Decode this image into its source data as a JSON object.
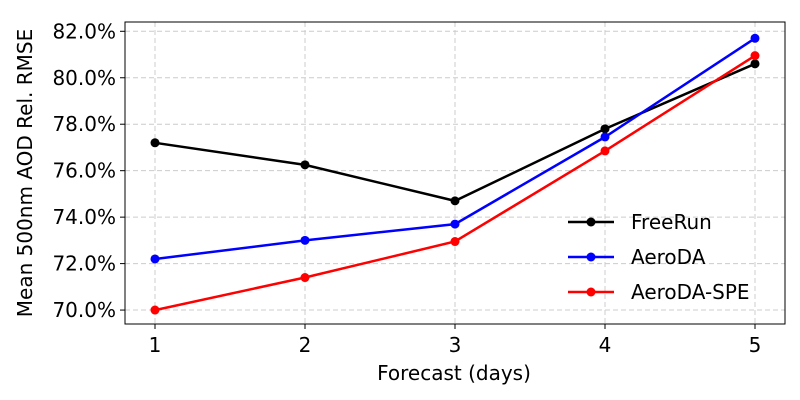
{
  "chart_data": {
    "type": "line",
    "x": [
      1,
      2,
      3,
      4,
      5
    ],
    "xlabel": "Forecast (days)",
    "ylabel": "Mean 500nm AOD Rel. RMSE",
    "xlim": [
      0.8,
      5.2
    ],
    "ylim": [
      69.4,
      82.4
    ],
    "xticks": [
      1,
      2,
      3,
      4,
      5
    ],
    "yticks": [
      70,
      72,
      74,
      76,
      78,
      80,
      82
    ],
    "ytick_labels": [
      "70.0%",
      "72.0%",
      "74.0%",
      "76.0%",
      "78.0%",
      "80.0%",
      "82.0%"
    ],
    "grid": true,
    "legend_position": "lower-right",
    "series": [
      {
        "name": "FreeRun",
        "color": "#000000",
        "values": [
          77.2,
          76.25,
          74.7,
          77.8,
          80.6
        ]
      },
      {
        "name": "AeroDA",
        "color": "#0000ff",
        "values": [
          72.2,
          73.0,
          73.7,
          77.45,
          81.7
        ]
      },
      {
        "name": "AeroDA-SPE",
        "color": "#ff0000",
        "values": [
          70.0,
          71.4,
          72.95,
          76.85,
          80.95
        ]
      }
    ]
  }
}
